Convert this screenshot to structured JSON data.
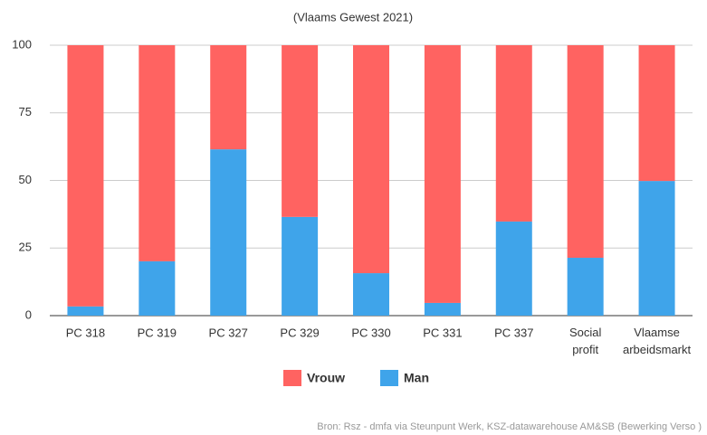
{
  "chart_data": {
    "type": "stacked_bar",
    "title": "(Vlaams Gewest 2021)",
    "categories": [
      "PC 318",
      "PC 319",
      "PC 327",
      "PC 329",
      "PC 330",
      "PC 331",
      "PC 337",
      "Social profit",
      "Vlaamse arbeidsmarkt"
    ],
    "series": [
      {
        "name": "Vrouw",
        "color": "#ff6361",
        "values": [
          96.6,
          79.9,
          38.5,
          63.5,
          84.3,
          95.3,
          65.2,
          78.6,
          50.2
        ]
      },
      {
        "name": "Man",
        "color": "#3fa4ea",
        "values": [
          3.4,
          20.1,
          61.5,
          36.5,
          15.7,
          4.7,
          34.8,
          21.4,
          49.8
        ]
      }
    ],
    "ylim": [
      0,
      100
    ],
    "yticks": [
      0,
      25,
      50,
      75,
      100
    ],
    "grid": true,
    "source": "Bron: Rsz - dmfa via Steunpunt Werk, KSZ-datawarehouse AM&SB (Bewerking Verso )"
  }
}
